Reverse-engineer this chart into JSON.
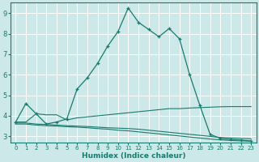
{
  "xlabel": "Humidex (Indice chaleur)",
  "bg_color": "#cce8e8",
  "grid_color": "#ffffff",
  "line_color": "#1a7a6e",
  "xlim": [
    -0.5,
    23.5
  ],
  "ylim": [
    2.7,
    9.5
  ],
  "yticks": [
    3,
    4,
    5,
    6,
    7,
    8,
    9
  ],
  "xticks": [
    0,
    1,
    2,
    3,
    4,
    5,
    6,
    7,
    8,
    9,
    10,
    11,
    12,
    13,
    14,
    15,
    16,
    17,
    18,
    19,
    20,
    21,
    22,
    23
  ],
  "main_curve_x": [
    0,
    1,
    2,
    3,
    4,
    5,
    6,
    7,
    8,
    9,
    10,
    11,
    12,
    13,
    14,
    15,
    16,
    17,
    18,
    19,
    20,
    21,
    22,
    23
  ],
  "main_curve_y": [
    3.7,
    4.6,
    4.1,
    3.6,
    3.7,
    3.85,
    5.3,
    5.85,
    6.55,
    7.4,
    8.1,
    9.25,
    8.55,
    8.2,
    7.85,
    8.25,
    7.75,
    6.0,
    4.5,
    3.1,
    2.9,
    2.85,
    2.82,
    2.78
  ],
  "line2_x": [
    0,
    1,
    2,
    3,
    4,
    5,
    6,
    7,
    8,
    9,
    10,
    11,
    12,
    13,
    14,
    15,
    16,
    17,
    18,
    19,
    20,
    21,
    22,
    23
  ],
  "line2_y": [
    3.7,
    3.7,
    4.1,
    4.05,
    4.05,
    3.8,
    3.9,
    3.95,
    4.0,
    4.05,
    4.1,
    4.15,
    4.2,
    4.25,
    4.3,
    4.35,
    4.35,
    4.38,
    4.4,
    4.42,
    4.44,
    4.45,
    4.45,
    4.45
  ],
  "line3_x": [
    0,
    1,
    2,
    3,
    4,
    5,
    6,
    7,
    8,
    9,
    10,
    11,
    12,
    13,
    14,
    15,
    16,
    17,
    18,
    19,
    20,
    21,
    22,
    23
  ],
  "line3_y": [
    3.65,
    3.65,
    3.6,
    3.58,
    3.55,
    3.52,
    3.5,
    3.48,
    3.45,
    3.42,
    3.4,
    3.38,
    3.35,
    3.3,
    3.25,
    3.2,
    3.15,
    3.1,
    3.05,
    3.0,
    2.95,
    2.92,
    2.9,
    2.88
  ],
  "line4_x": [
    0,
    1,
    2,
    3,
    4,
    5,
    6,
    7,
    8,
    9,
    10,
    11,
    12,
    13,
    14,
    15,
    16,
    17,
    18,
    19,
    20,
    21,
    22,
    23
  ],
  "line4_y": [
    3.6,
    3.6,
    3.55,
    3.52,
    3.5,
    3.47,
    3.45,
    3.42,
    3.38,
    3.35,
    3.3,
    3.27,
    3.22,
    3.17,
    3.12,
    3.07,
    3.02,
    2.97,
    2.92,
    2.87,
    2.83,
    2.8,
    2.78,
    2.76
  ]
}
